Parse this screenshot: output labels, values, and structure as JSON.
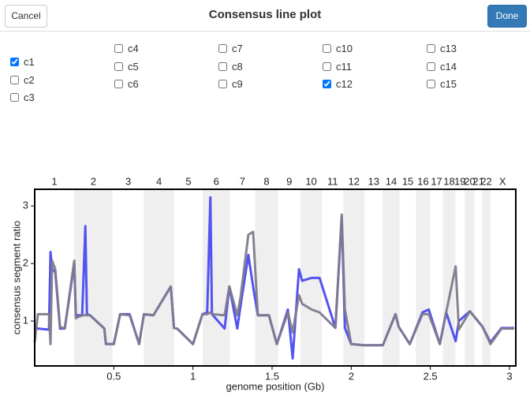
{
  "header": {
    "cancel": "Cancel",
    "title": "Consensus line plot",
    "done": "Done"
  },
  "checkboxes": [
    {
      "label": "c1",
      "checked": true
    },
    {
      "label": "c2",
      "checked": false
    },
    {
      "label": "c3",
      "checked": false
    },
    {
      "label": "c4",
      "checked": false
    },
    {
      "label": "c5",
      "checked": false
    },
    {
      "label": "c6",
      "checked": false
    },
    {
      "label": "c7",
      "checked": false
    },
    {
      "label": "c8",
      "checked": false
    },
    {
      "label": "c9",
      "checked": false
    },
    {
      "label": "c10",
      "checked": false
    },
    {
      "label": "c11",
      "checked": false
    },
    {
      "label": "c12",
      "checked": true
    },
    {
      "label": "c13",
      "checked": false
    },
    {
      "label": "c14",
      "checked": false
    },
    {
      "label": "c15",
      "checked": false
    }
  ],
  "chart_data": {
    "type": "line",
    "x_label": "genome position (Gb)",
    "y_label": "consensus segment ratio",
    "xlim": [
      0,
      3.04
    ],
    "ylim": [
      0.22,
      3.29
    ],
    "xticks": [
      0.5,
      1,
      1.5,
      2,
      2.5,
      3
    ],
    "yticks": [
      1,
      2,
      3
    ],
    "chromosomes": [
      "1",
      "2",
      "3",
      "4",
      "5",
      "6",
      "7",
      "8",
      "9",
      "10",
      "11",
      "12",
      "13",
      "14",
      "15",
      "16",
      "17",
      "18",
      "19",
      "20",
      "21",
      "22",
      "X"
    ],
    "chromosome_bounds": [
      0,
      0.249,
      0.492,
      0.69,
      0.881,
      1.062,
      1.233,
      1.392,
      1.538,
      1.679,
      1.815,
      1.95,
      2.084,
      2.199,
      2.306,
      2.409,
      2.499,
      2.58,
      2.658,
      2.717,
      2.78,
      2.828,
      2.879,
      3.034
    ],
    "band_color": "#efefef",
    "x": [
      0,
      0.02,
      0.09,
      0.1,
      0.11,
      0.13,
      0.16,
      0.19,
      0.25,
      0.26,
      0.3,
      0.32,
      0.33,
      0.35,
      0.44,
      0.45,
      0.5,
      0.54,
      0.6,
      0.66,
      0.69,
      0.75,
      0.86,
      0.88,
      0.9,
      1.0,
      1.06,
      1.09,
      1.11,
      1.12,
      1.2,
      1.23,
      1.28,
      1.3,
      1.35,
      1.38,
      1.41,
      1.48,
      1.53,
      1.6,
      1.63,
      1.67,
      1.69,
      1.75,
      1.8,
      1.9,
      1.94,
      1.96,
      2.0,
      2.08,
      2.2,
      2.28,
      2.3,
      2.37,
      2.45,
      2.49,
      2.56,
      2.6,
      2.66,
      2.68,
      2.75,
      2.83,
      2.88,
      2.95,
      3.03
    ],
    "series": [
      {
        "color": "#4a4af0",
        "values": [
          0.87,
          0.87,
          0.85,
          2.2,
          1.9,
          1.85,
          0.87,
          0.87,
          2.0,
          1.1,
          1.1,
          2.65,
          1.12,
          1.1,
          0.87,
          0.6,
          0.6,
          1.12,
          1.12,
          0.6,
          1.12,
          1.1,
          1.6,
          0.88,
          0.87,
          0.6,
          1.12,
          1.15,
          3.15,
          1.12,
          0.87,
          1.6,
          0.87,
          1.25,
          2.15,
          1.6,
          1.1,
          1.1,
          0.6,
          1.2,
          0.35,
          1.9,
          1.7,
          1.75,
          1.75,
          0.88,
          2.8,
          0.88,
          0.6,
          0.58,
          0.58,
          1.12,
          0.9,
          0.6,
          1.15,
          1.2,
          0.6,
          1.15,
          0.65,
          1.0,
          1.17,
          0.9,
          0.63,
          0.88,
          0.88
        ]
      },
      {
        "color": "#7f7b8c",
        "values": [
          0.63,
          1.12,
          1.12,
          0.6,
          2.05,
          1.9,
          0.9,
          0.87,
          2.05,
          1.05,
          1.1,
          1.1,
          1.1,
          1.1,
          0.87,
          0.6,
          0.6,
          1.12,
          1.1,
          0.6,
          1.12,
          1.1,
          1.6,
          0.88,
          0.87,
          0.6,
          1.12,
          1.12,
          1.15,
          1.12,
          1.1,
          1.6,
          1.1,
          1.4,
          2.5,
          2.55,
          1.1,
          1.1,
          0.6,
          1.15,
          0.8,
          1.45,
          1.3,
          1.2,
          1.15,
          0.88,
          2.85,
          1.2,
          0.6,
          0.58,
          0.58,
          1.12,
          0.9,
          0.6,
          1.12,
          1.12,
          0.6,
          1.15,
          1.95,
          0.85,
          1.17,
          0.9,
          0.6,
          0.87,
          0.87
        ]
      }
    ]
  }
}
